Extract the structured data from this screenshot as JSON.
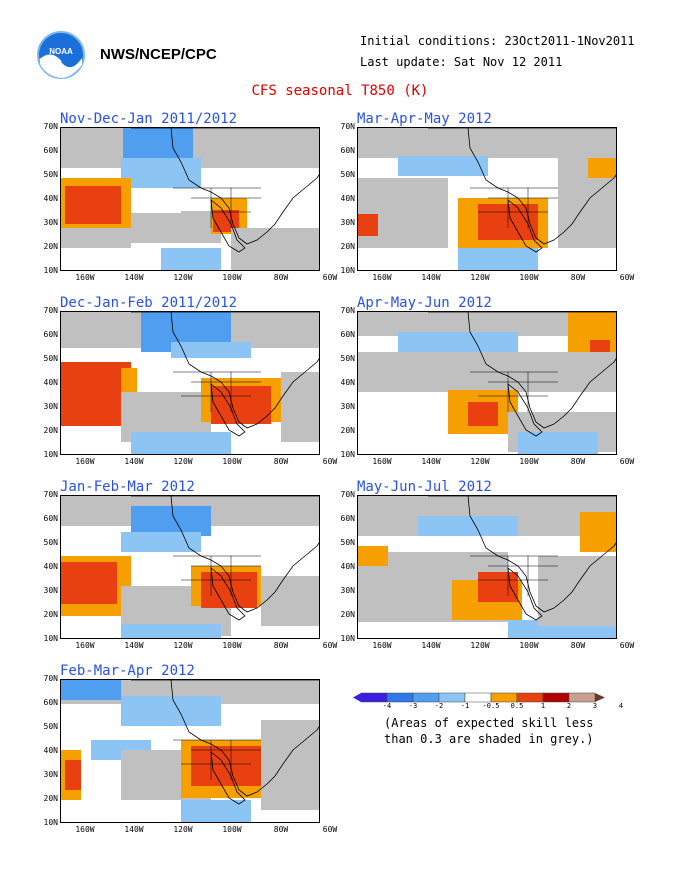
{
  "header": {
    "org": "NWS/NCEP/CPC",
    "initial_conditions": "Initial conditions: 23Oct2011-1Nov2011",
    "last_update": "Last update: Sat Nov 12 2011",
    "title": "CFS seasonal T850 (K)",
    "logo": "noaa-logo"
  },
  "lat_labels": [
    "70N",
    "60N",
    "50N",
    "40N",
    "30N",
    "20N",
    "10N"
  ],
  "lon_labels": [
    "160W",
    "140W",
    "120W",
    "100W",
    "80W",
    "60W"
  ],
  "panels": [
    {
      "title": "Nov-Dec-Jan 2011/2012"
    },
    {
      "title": "Mar-Apr-May 2012"
    },
    {
      "title": "Dec-Jan-Feb 2011/2012"
    },
    {
      "title": "Apr-May-Jun 2012"
    },
    {
      "title": "Jan-Feb-Mar 2012"
    },
    {
      "title": "May-Jun-Jul 2012"
    },
    {
      "title": "Feb-Mar-Apr 2012"
    }
  ],
  "colorbar": {
    "ticks": [
      "-4",
      "-3",
      "-2",
      "-1",
      "-0.5",
      "0.5",
      "1",
      "2",
      "3",
      "4"
    ],
    "colors": [
      "#3c1ee0",
      "#2f78e8",
      "#4f9ef0",
      "#8cc4f4",
      "#ffffff",
      "#f5a000",
      "#e84010",
      "#b00000",
      "#c8a090"
    ],
    "grey": "#c0c0c0"
  },
  "note": {
    "line1": "(Areas of expected skill less",
    "line2": "than 0.3 are shaded in grey.)"
  }
}
